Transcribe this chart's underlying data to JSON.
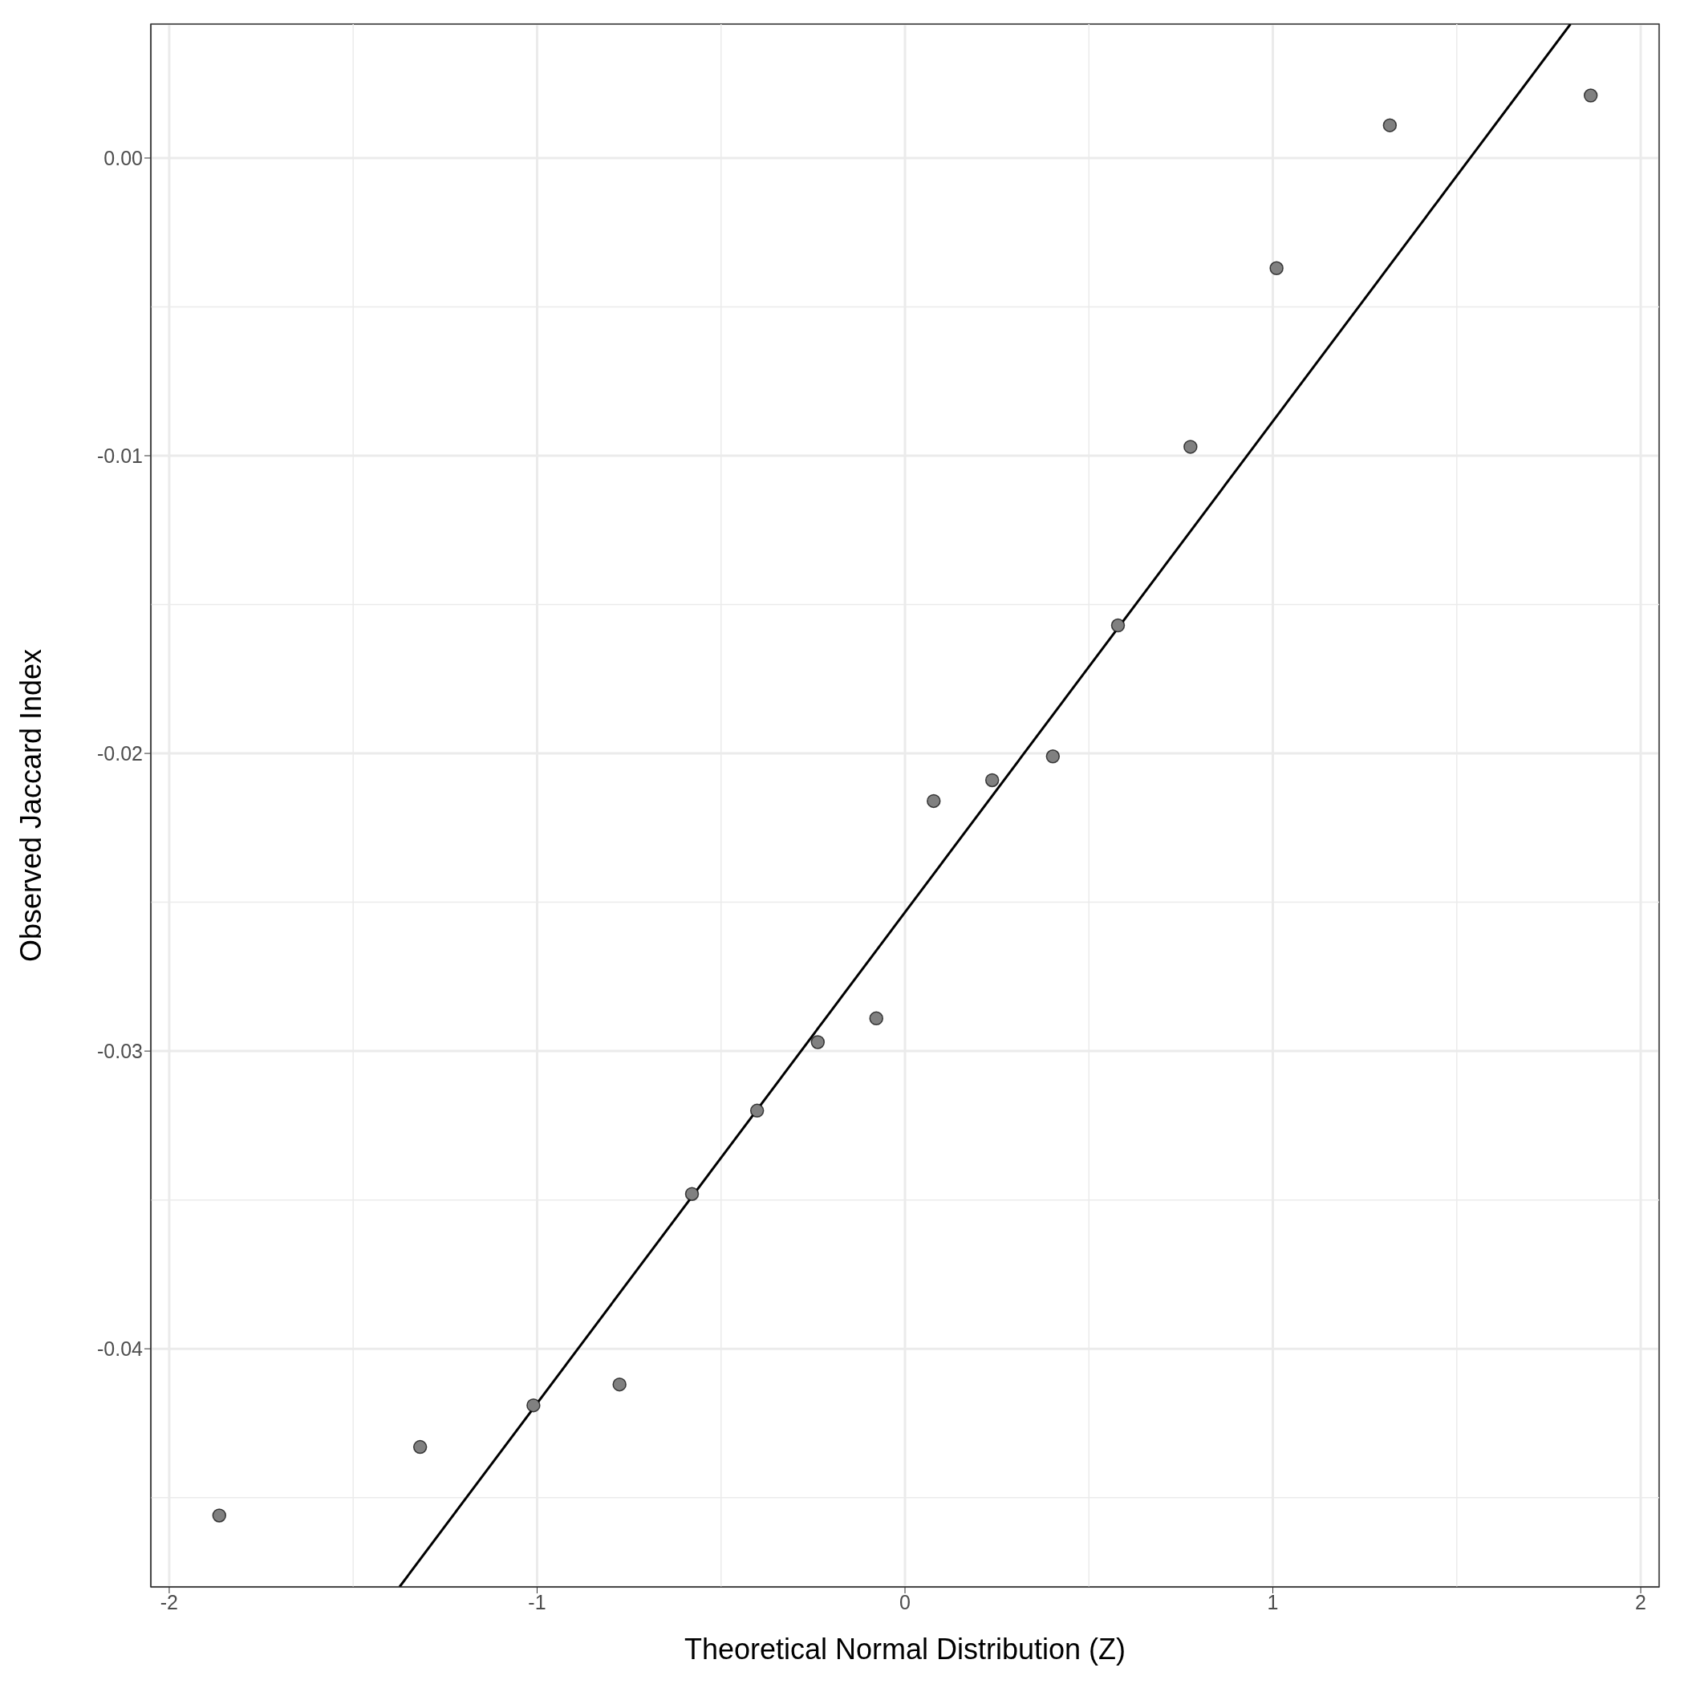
{
  "chart_data": {
    "type": "scatter",
    "xlabel": "Theoretical Normal Distribution (Z)",
    "ylabel": "Observed Jaccard Index",
    "xlim": [
      -2.05,
      2.05
    ],
    "xticks": [
      -2,
      -1,
      0,
      1,
      2
    ],
    "ylim": [
      -0.048,
      0.0045
    ],
    "yticks": [
      {
        "value": -0.04,
        "label": "-0.04"
      },
      {
        "value": -0.03,
        "label": "-0.03"
      },
      {
        "value": -0.02,
        "label": "-0.02"
      },
      {
        "value": -0.01,
        "label": "-0.01"
      },
      {
        "value": 0,
        "label": "0.00"
      }
    ],
    "grid": true,
    "series": [
      {
        "marker": "circle",
        "color": "#808080",
        "x": [
          -1.864,
          -1.318,
          -1.01,
          -0.776,
          -0.579,
          -0.402,
          -0.237,
          -0.078,
          0.078,
          0.237,
          0.402,
          0.579,
          0.776,
          1.01,
          1.318,
          1.864
        ],
        "values": [
          -0.0456,
          -0.0433,
          -0.0419,
          -0.0412,
          -0.0348,
          -0.032,
          -0.0297,
          -0.0289,
          -0.0216,
          -0.0209,
          -0.0201,
          -0.0157,
          -0.0097,
          -0.0037,
          0.0011,
          0.0021
        ]
      },
      {
        "type": "line",
        "marker": "none",
        "color": "#000000",
        "x": [
          -1.374,
          1.809
        ],
        "values": [
          -0.048,
          0.0045
        ]
      }
    ]
  }
}
